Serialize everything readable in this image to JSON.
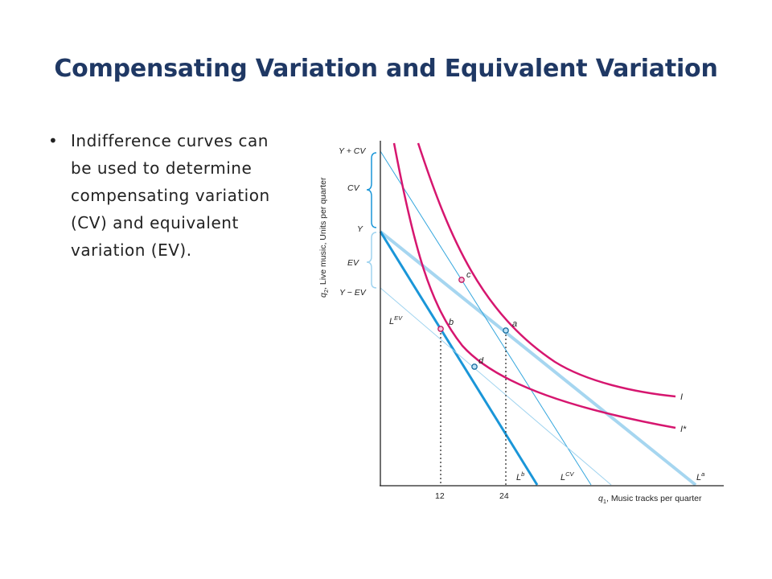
{
  "slide": {
    "title": "Compensating Variation and Equivalent Variation",
    "bullets": [
      "Indifference curves can be used to determine compensating variation (CV) and equivalent variation (EV)."
    ]
  },
  "diagram": {
    "y_axis_label": "q",
    "y_axis_label_sub": "2",
    "y_axis_label_rest": ", Live music, Units per quarter",
    "x_axis_label": "q",
    "x_axis_label_sub": "1",
    "x_axis_label_rest": ", Music tracks per quarter",
    "x_ticks": [
      "12",
      "24"
    ],
    "y_ticks": [
      "Y + CV",
      "CV",
      "Y",
      "EV",
      "Y − EV"
    ],
    "points": [
      "a",
      "b",
      "c",
      "d"
    ],
    "curves": [
      "I",
      "I*"
    ],
    "lines": {
      "la": "L",
      "la_sup": "a",
      "lb": "L",
      "lb_sup": "b",
      "lcv": "L",
      "lcv_sup": "CV",
      "lev": "L",
      "lev_sup": "EV"
    },
    "colors": {
      "curve": "#d6166f",
      "budget_dark": "#1a96d8",
      "budget_light": "#9fd3ef",
      "budget_thin": "#34a6dd",
      "title": "#1f3864"
    }
  }
}
